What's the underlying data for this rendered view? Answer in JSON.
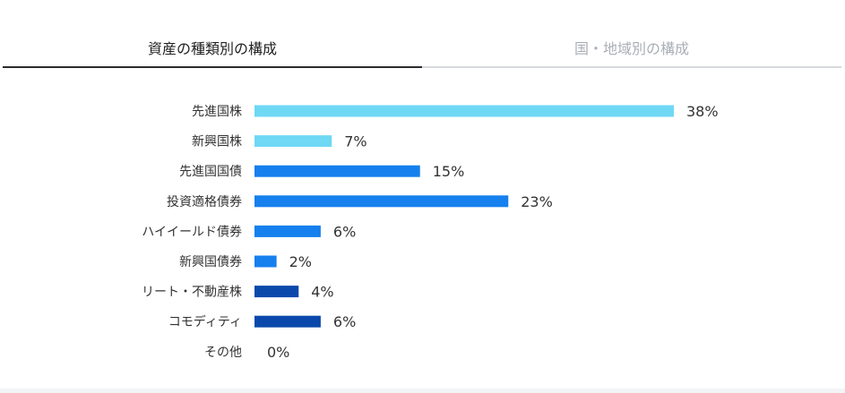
{
  "tabs": [
    {
      "label": "資産の種類別の構成",
      "active": true
    },
    {
      "label": "国・地域別の構成",
      "active": false
    }
  ],
  "chart_data": {
    "type": "bar",
    "orientation": "horizontal",
    "title": "",
    "xlabel": "",
    "ylabel": "",
    "xlim": [
      0,
      38
    ],
    "categories": [
      "先進国株",
      "新興国株",
      "先進国国債",
      "投資適格債券",
      "ハイイールド債券",
      "新興国債券",
      "リート・不動産株",
      "コモディティ",
      "その他"
    ],
    "values": [
      38,
      7,
      15,
      23,
      6,
      2,
      4,
      6,
      0
    ],
    "value_labels": [
      "38%",
      "7%",
      "15%",
      "23%",
      "6%",
      "2%",
      "4%",
      "6%",
      "0%"
    ],
    "bar_colors": [
      "#6fd8f5",
      "#6fd8f5",
      "#1580ee",
      "#1580ee",
      "#1580ee",
      "#1580ee",
      "#0a49ab",
      "#0a49ab",
      "#0a49ab"
    ],
    "grid": false,
    "legend": "none"
  }
}
